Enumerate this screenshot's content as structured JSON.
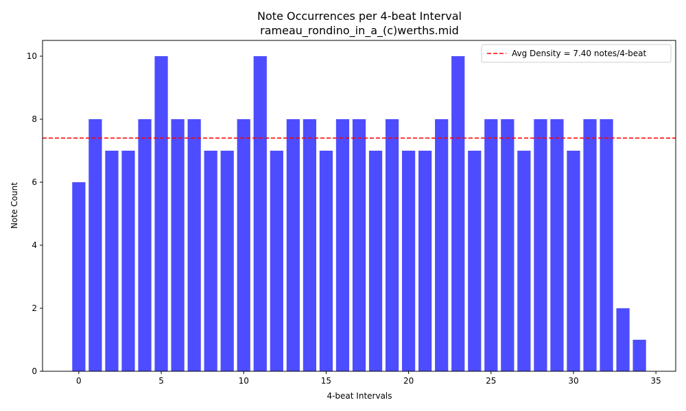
{
  "chart_data": {
    "type": "bar",
    "title": "Note Occurrences per 4-beat Interval",
    "subtitle": "rameau_rondino_in_a_(c)werths.mid",
    "xlabel": "4-beat Intervals",
    "ylabel": "Note Count",
    "x": [
      0,
      1,
      2,
      3,
      4,
      5,
      6,
      7,
      8,
      9,
      10,
      11,
      12,
      13,
      14,
      15,
      16,
      17,
      18,
      19,
      20,
      21,
      22,
      23,
      24,
      25,
      26,
      27,
      28,
      29,
      30,
      31,
      32,
      33,
      34
    ],
    "values": [
      6,
      8,
      7,
      7,
      8,
      10,
      8,
      8,
      7,
      7,
      8,
      10,
      7,
      8,
      8,
      7,
      8,
      8,
      7,
      8,
      7,
      7,
      8,
      10,
      7,
      8,
      8,
      7,
      8,
      8,
      7,
      8,
      8,
      2,
      1
    ],
    "xlim": [
      -2.2,
      36.2
    ],
    "ylim": [
      0,
      10.5
    ],
    "xticks": [
      0,
      5,
      10,
      15,
      20,
      25,
      30,
      35
    ],
    "yticks": [
      0,
      2,
      4,
      6,
      8,
      10
    ],
    "bar_color": "#4d4dff",
    "bar_width": 0.8,
    "avg_line": {
      "value": 7.4,
      "color": "#ff0000",
      "label": "Avg Density = 7.40 notes/4-beat"
    },
    "legend_position": "top-right",
    "grid": false
  }
}
